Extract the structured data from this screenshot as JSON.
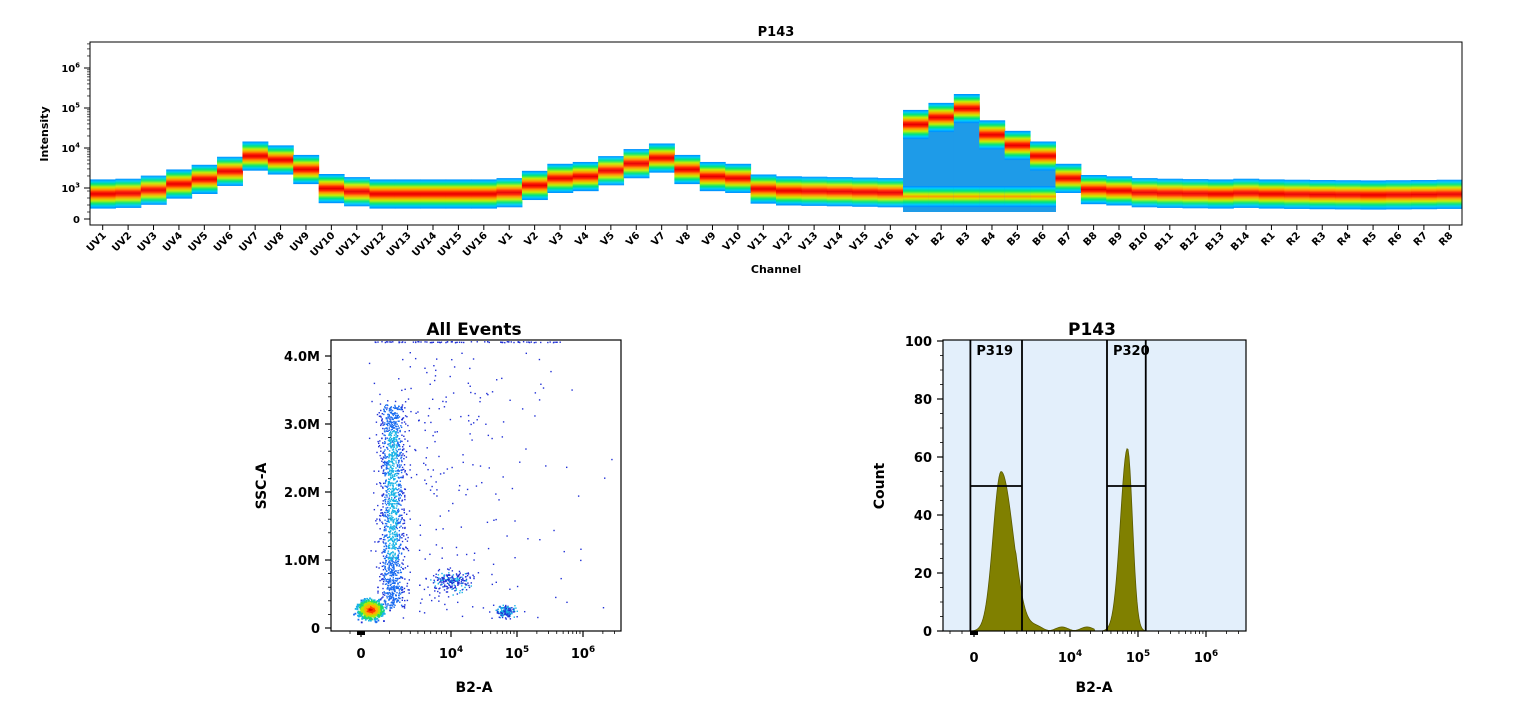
{
  "chart_data": [
    {
      "type": "heatmap",
      "title": "P143",
      "xlabel": "Channel",
      "ylabel": "Intensity",
      "y_scale": "log",
      "y_ticks": [
        "0",
        "10^3",
        "10^4",
        "10^5",
        "10^6"
      ],
      "categories": [
        "UV1",
        "UV2",
        "UV3",
        "UV4",
        "UV5",
        "UV6",
        "UV7",
        "UV8",
        "UV9",
        "UV10",
        "UV11",
        "UV12",
        "UV13",
        "UV14",
        "UV15",
        "UV16",
        "V1",
        "V2",
        "V3",
        "V4",
        "V5",
        "V6",
        "V7",
        "V8",
        "V9",
        "V10",
        "V11",
        "V12",
        "V13",
        "V14",
        "V15",
        "V16",
        "B1",
        "B2",
        "B3",
        "B4",
        "B5",
        "B6",
        "B7",
        "B8",
        "B9",
        "B10",
        "B11",
        "B12",
        "B13",
        "B14",
        "R1",
        "R2",
        "R3",
        "R4",
        "R5",
        "R6",
        "R7",
        "R8"
      ],
      "median_intensity": [
        300,
        350,
        700,
        1300,
        1700,
        2700,
        6500,
        5200,
        3000,
        1000,
        500,
        300,
        300,
        300,
        300,
        300,
        400,
        1200,
        1800,
        2000,
        2800,
        4200,
        5800,
        3000,
        2000,
        1800,
        900,
        600,
        550,
        500,
        450,
        400,
        40000,
        60000,
        100000,
        22000,
        12000,
        6500,
        1800,
        800,
        600,
        400,
        350,
        320,
        300,
        350,
        300,
        280,
        260,
        250,
        240,
        250,
        260,
        280
      ],
      "blue_population_channels": [
        "B1",
        "B2",
        "B3",
        "B4",
        "B5",
        "B6"
      ]
    },
    {
      "type": "scatter",
      "title": "All Events",
      "xlabel": "B2-A",
      "ylabel": "SSC-A",
      "x_scale": "biexponential",
      "x_ticks": [
        "0",
        "10^4",
        "10^5",
        "10^6"
      ],
      "y_ticks": [
        "0",
        "1.0M",
        "2.0M",
        "3.0M",
        "4.0M"
      ],
      "ylim": [
        0,
        4200000
      ],
      "populations": [
        {
          "x_center": 300,
          "y_center": 200000,
          "density": "high"
        },
        {
          "x_center": 2000,
          "y_center": 2000000,
          "density": "medium"
        },
        {
          "x_center": 15000,
          "y_center": 700000,
          "density": "low"
        },
        {
          "x_center": 75000,
          "y_center": 250000,
          "density": "low"
        }
      ]
    },
    {
      "type": "area",
      "title": "P143",
      "xlabel": "B2-A",
      "ylabel": "Count",
      "x_scale": "biexponential",
      "x_ticks": [
        "0",
        "10^4",
        "10^5",
        "10^6"
      ],
      "y_ticks": [
        "0",
        "20",
        "40",
        "60",
        "80",
        "100"
      ],
      "ylim": [
        0,
        100
      ],
      "peaks": [
        {
          "x": 800,
          "count": 55
        },
        {
          "x": 70000,
          "count": 63
        }
      ],
      "gates": [
        {
          "name": "P319",
          "x_range": [
            -300,
            2500
          ],
          "marker_count": 50
        },
        {
          "name": "P320",
          "x_range": [
            35000,
            130000
          ],
          "marker_count": 50
        }
      ],
      "fill_color": "#808000"
    }
  ]
}
